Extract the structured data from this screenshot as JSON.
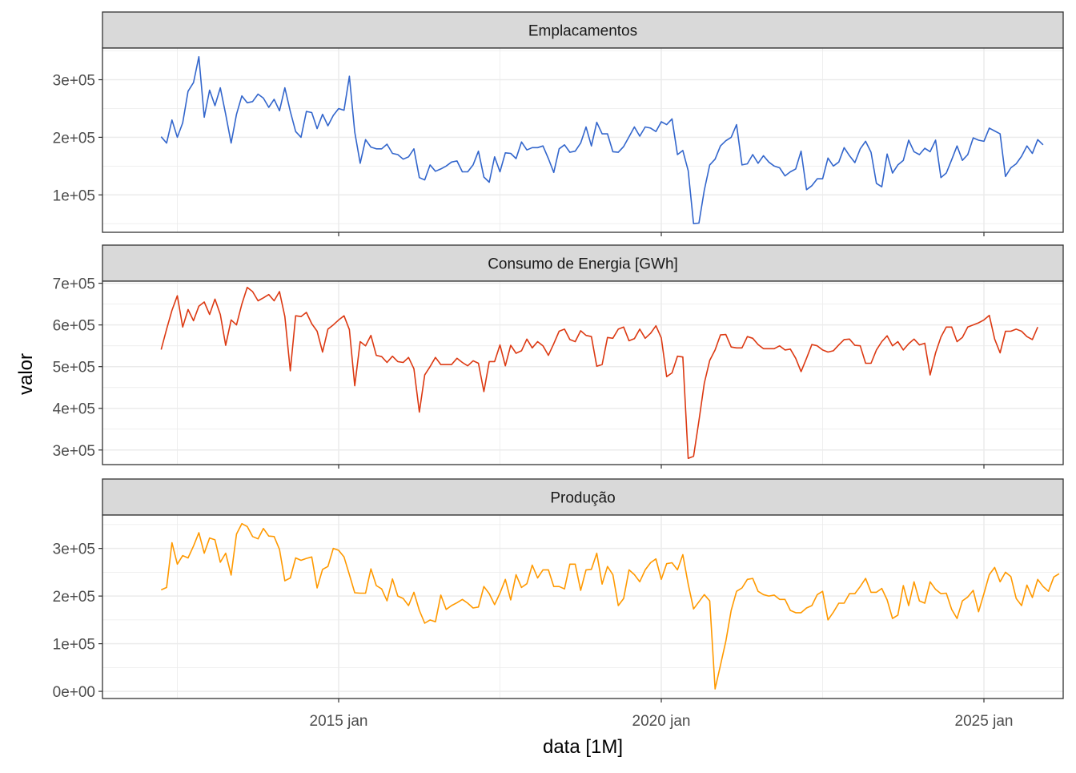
{
  "xlabel": "data [1M]",
  "ylabel": "valor",
  "x_ticks": [
    {
      "date": "2015-01",
      "label": "2015 jan"
    },
    {
      "date": "2020-01",
      "label": "2020 jan"
    },
    {
      "date": "2025-01",
      "label": "2025 jan"
    }
  ],
  "chart_data": [
    {
      "type": "line",
      "title": "Emplacamentos",
      "color": "#3366CC",
      "x_start": "2012-04",
      "x_step": "1 month",
      "ylim": [
        35000,
        355000
      ],
      "y_ticks": [
        {
          "value": 100000,
          "label": "1e+05"
        },
        {
          "value": 200000,
          "label": "2e+05"
        },
        {
          "value": 300000,
          "label": "3e+05"
        }
      ],
      "values": [
        201000,
        190000,
        230000,
        200000,
        225000,
        280000,
        295000,
        340000,
        235000,
        282000,
        255000,
        286000,
        240000,
        190000,
        240000,
        272000,
        260000,
        262000,
        275000,
        268000,
        252000,
        266000,
        246000,
        286000,
        245000,
        210000,
        200000,
        245000,
        243000,
        215000,
        240000,
        220000,
        238000,
        250000,
        247000,
        306000,
        209000,
        155000,
        196000,
        183000,
        180000,
        180000,
        188000,
        172000,
        170000,
        162000,
        166000,
        180000,
        130000,
        126000,
        152000,
        141000,
        145000,
        150000,
        157000,
        159000,
        140000,
        140000,
        152000,
        176000,
        131000,
        122000,
        166000,
        140000,
        173000,
        172000,
        163000,
        192000,
        178000,
        182000,
        182000,
        185000,
        163000,
        139000,
        180000,
        187000,
        174000,
        176000,
        190000,
        218000,
        185000,
        226000,
        206000,
        206000,
        175000,
        174000,
        184000,
        201000,
        218000,
        202000,
        218000,
        216000,
        210000,
        227000,
        222000,
        232000,
        170000,
        177000,
        142000,
        50000,
        51000,
        108000,
        152000,
        162000,
        185000,
        194000,
        200000,
        222000,
        152000,
        154000,
        170000,
        155000,
        168000,
        157000,
        150000,
        147000,
        133000,
        140000,
        145000,
        176000,
        109000,
        116000,
        128000,
        128000,
        164000,
        150000,
        157000,
        182000,
        168000,
        156000,
        180000,
        193000,
        174000,
        120000,
        114000,
        171000,
        138000,
        152000,
        160000,
        195000,
        175000,
        170000,
        181000,
        175000,
        195000,
        130000,
        138000,
        161000,
        185000,
        160000,
        170000,
        199000,
        195000,
        193000,
        216000,
        211000,
        206000,
        132000,
        147000,
        154000,
        167000,
        185000,
        172000,
        196000,
        187000
      ]
    },
    {
      "type": "line",
      "title": "Consumo de Energia [GWh]",
      "color": "#DC3912",
      "x_start": "2012-04",
      "x_step": "1 month",
      "ylim": [
        265000,
        705000
      ],
      "y_ticks": [
        {
          "value": 300000,
          "label": "3e+05"
        },
        {
          "value": 400000,
          "label": "4e+05"
        },
        {
          "value": 500000,
          "label": "5e+05"
        },
        {
          "value": 600000,
          "label": "6e+05"
        },
        {
          "value": 700000,
          "label": "7e+05"
        }
      ],
      "values": [
        541000,
        590000,
        635000,
        670000,
        595000,
        637000,
        610000,
        645000,
        655000,
        625000,
        662000,
        625000,
        551000,
        612000,
        600000,
        650000,
        690000,
        680000,
        658000,
        665000,
        673000,
        658000,
        680000,
        620000,
        490000,
        622000,
        620000,
        630000,
        603000,
        585000,
        535000,
        590000,
        600000,
        612000,
        622000,
        589000,
        454000,
        560000,
        550000,
        575000,
        527000,
        524000,
        510000,
        525000,
        512000,
        510000,
        522000,
        495000,
        391000,
        480000,
        500000,
        522000,
        505000,
        505000,
        505000,
        520000,
        510000,
        502000,
        514000,
        508000,
        440000,
        512000,
        512000,
        552000,
        502000,
        551000,
        532000,
        538000,
        566000,
        545000,
        560000,
        550000,
        527000,
        555000,
        585000,
        590000,
        565000,
        560000,
        586000,
        575000,
        572000,
        501000,
        505000,
        570000,
        568000,
        590000,
        595000,
        562000,
        567000,
        590000,
        568000,
        580000,
        598000,
        569000,
        476000,
        485000,
        525000,
        523000,
        280000,
        285000,
        370000,
        460000,
        515000,
        540000,
        576000,
        577000,
        547000,
        545000,
        545000,
        572000,
        568000,
        553000,
        543000,
        543000,
        543000,
        550000,
        540000,
        542000,
        520000,
        488000,
        520000,
        553000,
        550000,
        540000,
        535000,
        538000,
        552000,
        565000,
        566000,
        551000,
        550000,
        508000,
        508000,
        540000,
        560000,
        574000,
        550000,
        560000,
        540000,
        555000,
        566000,
        552000,
        556000,
        480000,
        533000,
        571000,
        595000,
        595000,
        560000,
        570000,
        595000,
        600000,
        605000,
        612000,
        623000,
        566000,
        533000,
        585000,
        585000,
        590000,
        585000,
        572000,
        565000,
        595000
      ]
    },
    {
      "type": "line",
      "title": "Produção",
      "color": "#FF9900",
      "x_start": "2012-04",
      "x_step": "1 month",
      "ylim": [
        -15000,
        370000
      ],
      "y_ticks": [
        {
          "value": 0,
          "label": "0e+00"
        },
        {
          "value": 100000,
          "label": "1e+05"
        },
        {
          "value": 200000,
          "label": "2e+05"
        },
        {
          "value": 300000,
          "label": "3e+05"
        }
      ],
      "values": [
        213000,
        218000,
        312000,
        267000,
        285000,
        280000,
        305000,
        333000,
        290000,
        322000,
        318000,
        271000,
        290000,
        244000,
        330000,
        352000,
        346000,
        325000,
        320000,
        342000,
        326000,
        325000,
        298000,
        232000,
        238000,
        280000,
        275000,
        279000,
        282000,
        217000,
        256000,
        262000,
        300000,
        296000,
        282000,
        245000,
        207000,
        206000,
        206000,
        257000,
        222000,
        215000,
        190000,
        236000,
        200000,
        195000,
        180000,
        208000,
        170000,
        143000,
        150000,
        146000,
        202000,
        172000,
        180000,
        186000,
        193000,
        185000,
        175000,
        177000,
        220000,
        205000,
        182000,
        206000,
        235000,
        192000,
        245000,
        218000,
        226000,
        265000,
        238000,
        255000,
        255000,
        220000,
        220000,
        215000,
        267000,
        267000,
        212000,
        255000,
        256000,
        290000,
        225000,
        262000,
        245000,
        180000,
        195000,
        255000,
        245000,
        230000,
        255000,
        270000,
        278000,
        235000,
        268000,
        270000,
        255000,
        287000,
        225000,
        173000,
        188000,
        203000,
        190000,
        5000,
        55000,
        105000,
        170000,
        210000,
        217000,
        235000,
        237000,
        210000,
        203000,
        200000,
        202000,
        193000,
        193000,
        170000,
        165000,
        165000,
        175000,
        180000,
        203000,
        210000,
        150000,
        166000,
        185000,
        185000,
        205000,
        205000,
        220000,
        237000,
        208000,
        208000,
        216000,
        192000,
        153000,
        160000,
        222000,
        180000,
        230000,
        190000,
        185000,
        230000,
        214000,
        205000,
        206000,
        172000,
        153000,
        190000,
        198000,
        212000,
        167000,
        205000,
        245000,
        260000,
        230000,
        250000,
        241000,
        195000,
        180000,
        223000,
        197000,
        235000,
        220000,
        210000,
        240000,
        247000
      ]
    }
  ]
}
